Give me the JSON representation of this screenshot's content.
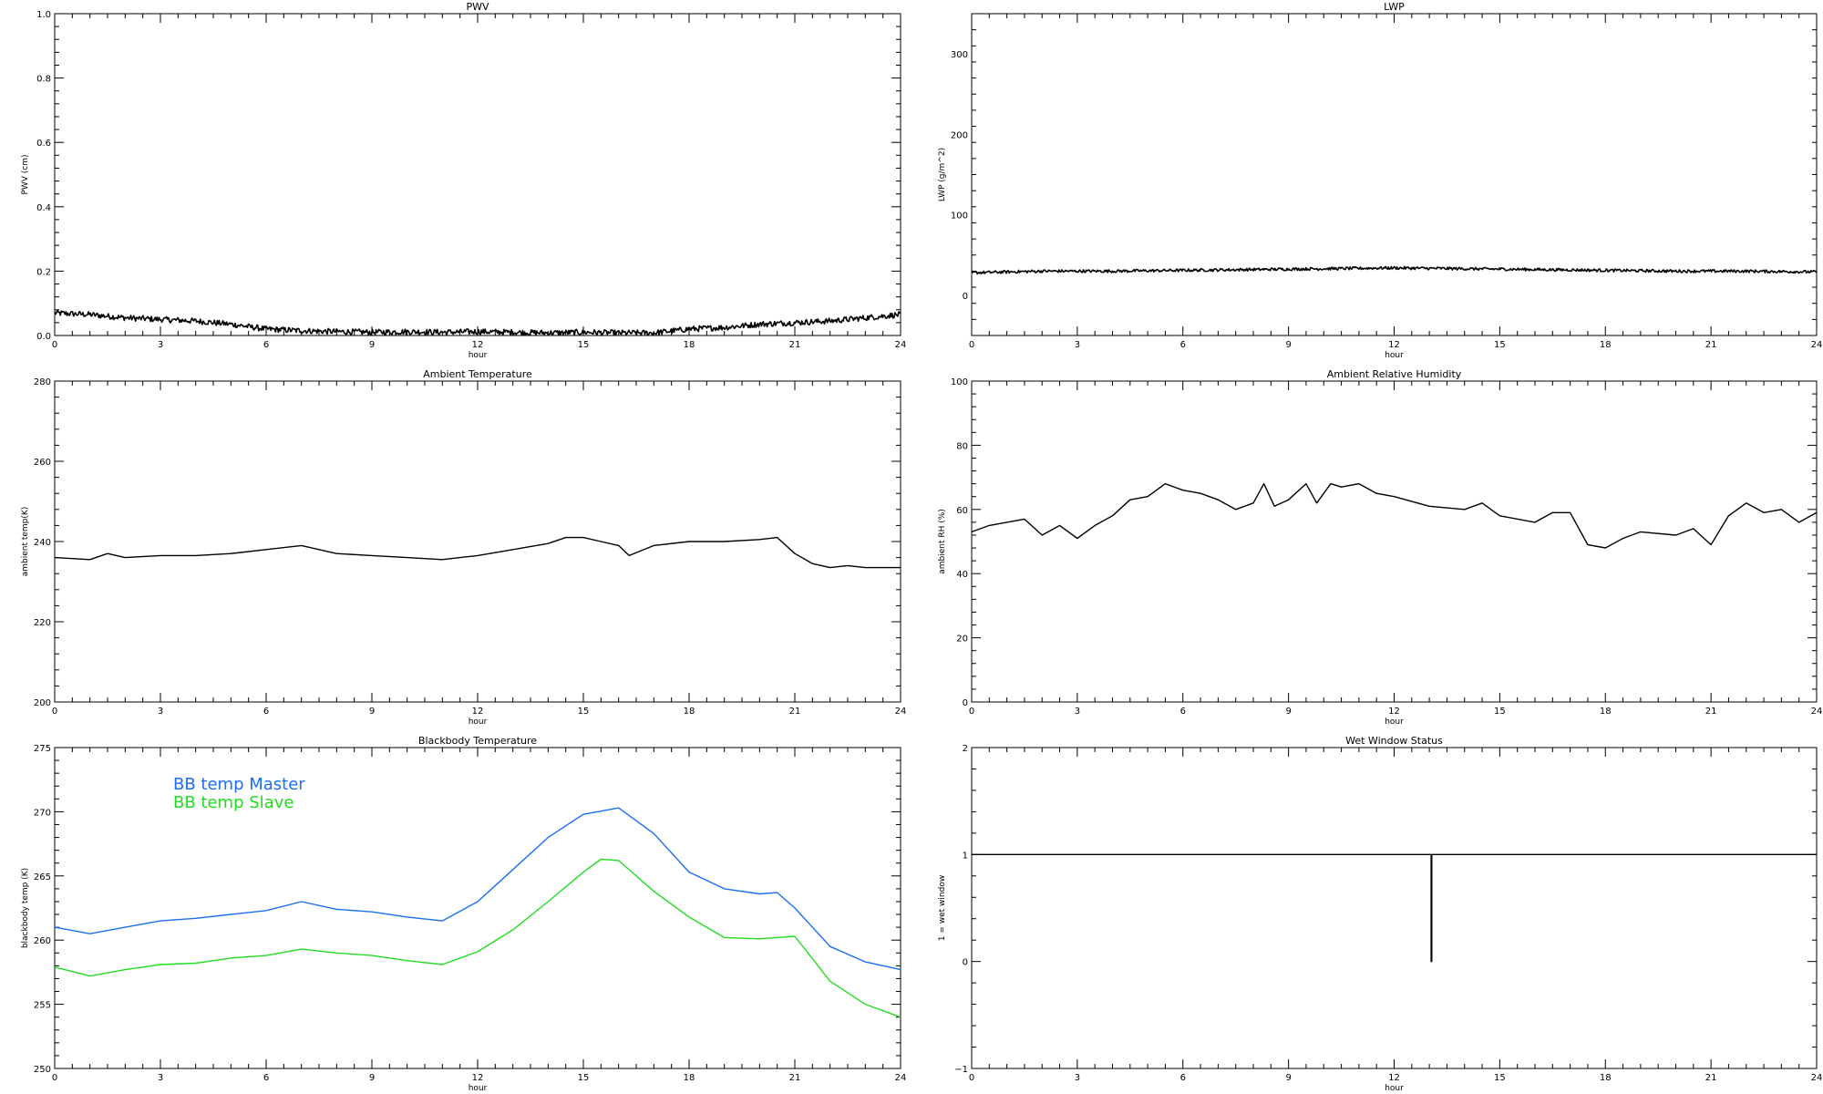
{
  "chart_data": [
    {
      "id": "pwv",
      "type": "line",
      "title": "PWV",
      "xlabel": "hour",
      "ylabel": "PWV (cm)",
      "xlim": [
        0,
        24
      ],
      "ylim": [
        0,
        1.0
      ],
      "xticks": [
        0,
        3,
        6,
        9,
        12,
        15,
        18,
        21,
        24
      ],
      "yticks": [
        0.0,
        0.2,
        0.4,
        0.6,
        0.8,
        1.0
      ],
      "ytick_labels": [
        "0.0",
        "0.2",
        "0.4",
        "0.6",
        "0.8",
        "1.0"
      ],
      "noisy": true,
      "series": [
        {
          "color": "#000000",
          "noise": 0.009,
          "x": [
            0,
            1,
            2,
            3,
            4,
            5,
            6,
            7,
            8,
            9,
            10,
            11,
            12,
            13,
            14,
            15,
            16,
            17,
            18,
            19,
            20,
            21,
            22,
            23,
            24
          ],
          "y": [
            0.07,
            0.065,
            0.055,
            0.05,
            0.045,
            0.035,
            0.02,
            0.015,
            0.012,
            0.01,
            0.012,
            0.01,
            0.012,
            0.01,
            0.008,
            0.01,
            0.008,
            0.008,
            0.02,
            0.025,
            0.035,
            0.04,
            0.045,
            0.055,
            0.065
          ]
        }
      ]
    },
    {
      "id": "lwp",
      "type": "line",
      "title": "LWP",
      "xlabel": "hour",
      "ylabel": "LWP (g/m^2)",
      "xlim": [
        0,
        24
      ],
      "ylim": [
        -50,
        350
      ],
      "xticks": [
        0,
        3,
        6,
        9,
        12,
        15,
        18,
        21,
        24
      ],
      "yticks": [
        0,
        100,
        200,
        300
      ],
      "ytick_labels": [
        "0",
        "100",
        "200",
        "300"
      ],
      "noisy": true,
      "series": [
        {
          "color": "#000000",
          "noise": 1.8,
          "x": [
            0,
            2,
            4,
            6,
            8,
            10,
            12,
            14,
            16,
            18,
            20,
            22,
            24
          ],
          "y": [
            28,
            30,
            30,
            31,
            32,
            33,
            34,
            33,
            32,
            31,
            30,
            30,
            29
          ]
        }
      ]
    },
    {
      "id": "ambient-temp",
      "type": "line",
      "title": "Ambient Temperature",
      "xlabel": "hour",
      "ylabel": "ambient temp(K)",
      "xlim": [
        0,
        24
      ],
      "ylim": [
        200,
        280
      ],
      "xticks": [
        0,
        3,
        6,
        9,
        12,
        15,
        18,
        21,
        24
      ],
      "yticks": [
        200,
        220,
        240,
        260,
        280
      ],
      "ytick_labels": [
        "200",
        "220",
        "240",
        "260",
        "280"
      ],
      "noisy": false,
      "series": [
        {
          "color": "#000000",
          "x": [
            0,
            1,
            1.5,
            2,
            3,
            4,
            5,
            6,
            7,
            8,
            9,
            10,
            11,
            12,
            13,
            14,
            14.5,
            15,
            15.5,
            16,
            16.3,
            17,
            18,
            19,
            20,
            20.5,
            21,
            21.5,
            22,
            22.5,
            23,
            24
          ],
          "y": [
            236,
            235.5,
            237,
            236,
            236.5,
            236.5,
            237,
            238,
            239,
            237,
            236.5,
            236,
            235.5,
            236.5,
            238,
            239.5,
            241,
            241,
            240,
            239,
            236.5,
            239,
            240,
            240,
            240.5,
            241,
            237,
            234.5,
            233.5,
            234,
            233.5,
            233.5
          ]
        }
      ]
    },
    {
      "id": "ambient-rh",
      "type": "line",
      "title": "Ambient Relative Humidity",
      "xlabel": "hour",
      "ylabel": "ambient RH (%)",
      "xlim": [
        0,
        24
      ],
      "ylim": [
        0,
        100
      ],
      "xticks": [
        0,
        3,
        6,
        9,
        12,
        15,
        18,
        21,
        24
      ],
      "yticks": [
        0,
        20,
        40,
        60,
        80,
        100
      ],
      "ytick_labels": [
        "0",
        "20",
        "40",
        "60",
        "80",
        "100"
      ],
      "noisy": false,
      "series": [
        {
          "color": "#000000",
          "x": [
            0,
            0.5,
            1,
            1.5,
            2,
            2.5,
            3,
            3.5,
            4,
            4.5,
            5,
            5.5,
            6,
            6.5,
            7,
            7.5,
            8,
            8.3,
            8.6,
            9,
            9.5,
            9.8,
            10.2,
            10.5,
            11,
            11.5,
            12,
            13,
            14,
            14.5,
            15,
            16,
            16.5,
            17,
            17.5,
            18,
            18.5,
            19,
            20,
            20.5,
            21,
            21.5,
            22,
            22.5,
            23,
            23.5,
            24
          ],
          "y": [
            53,
            55,
            56,
            57,
            52,
            55,
            51,
            55,
            58,
            63,
            64,
            68,
            66,
            65,
            63,
            60,
            62,
            68,
            61,
            63,
            68,
            62,
            68,
            67,
            68,
            65,
            64,
            61,
            60,
            62,
            58,
            56,
            59,
            59,
            49,
            48,
            51,
            53,
            52,
            54,
            49,
            58,
            62,
            59,
            60,
            56,
            59
          ]
        }
      ]
    },
    {
      "id": "blackbody-temp",
      "type": "line",
      "title": "Blackbody Temperature",
      "xlabel": "hour",
      "ylabel": "blackbody temp (K)",
      "xlim": [
        0,
        24
      ],
      "ylim": [
        250,
        275
      ],
      "xticks": [
        0,
        3,
        6,
        9,
        12,
        15,
        18,
        21,
        24
      ],
      "yticks": [
        250,
        255,
        260,
        265,
        270,
        275
      ],
      "ytick_labels": [
        "250",
        "255",
        "260",
        "265",
        "270",
        "275"
      ],
      "noisy": false,
      "series": [
        {
          "name": "BB temp Master",
          "color": "#1a6ff0",
          "x": [
            0,
            1,
            2,
            3,
            4,
            5,
            6,
            7,
            8,
            9,
            10,
            11,
            12,
            13,
            14,
            15,
            16,
            17,
            18,
            19,
            20,
            20.5,
            21,
            22,
            23,
            24
          ],
          "y": [
            261,
            260.5,
            261,
            261.5,
            261.7,
            262,
            262.3,
            263,
            262.4,
            262.2,
            261.8,
            261.5,
            263,
            265.5,
            268,
            269.8,
            270.3,
            268.3,
            265.3,
            264,
            263.6,
            263.7,
            262.5,
            259.5,
            258.3,
            257.7
          ]
        },
        {
          "name": "BB temp Slave",
          "color": "#22dd22",
          "x": [
            0,
            1,
            2,
            3,
            4,
            5,
            6,
            7,
            8,
            9,
            10,
            11,
            12,
            13,
            14,
            15,
            15.5,
            16,
            17,
            18,
            19,
            20,
            21,
            22,
            23,
            24
          ],
          "y": [
            257.9,
            257.2,
            257.7,
            258.1,
            258.2,
            258.6,
            258.8,
            259.3,
            259.0,
            258.8,
            258.4,
            258.1,
            259.1,
            260.8,
            263,
            265.3,
            266.3,
            266.2,
            263.8,
            261.8,
            260.2,
            260.1,
            260.3,
            256.8,
            255,
            254
          ]
        }
      ]
    },
    {
      "id": "wet-window",
      "type": "line",
      "title": "Wet Window Status",
      "xlabel": "hour",
      "ylabel": "1 = wet window",
      "xlim": [
        0,
        24
      ],
      "ylim": [
        -1,
        2
      ],
      "xticks": [
        0,
        3,
        6,
        9,
        12,
        15,
        18,
        21,
        24
      ],
      "yticks": [
        -1,
        0,
        1,
        2
      ],
      "ytick_labels": [
        "−1",
        "0",
        "1",
        "2"
      ],
      "noisy": false,
      "step": true,
      "series": [
        {
          "color": "#000000",
          "x": [
            0,
            13.05,
            13.05,
            13.07,
            13.07,
            24
          ],
          "y": [
            1,
            1,
            0,
            0,
            1,
            1
          ]
        }
      ]
    }
  ]
}
